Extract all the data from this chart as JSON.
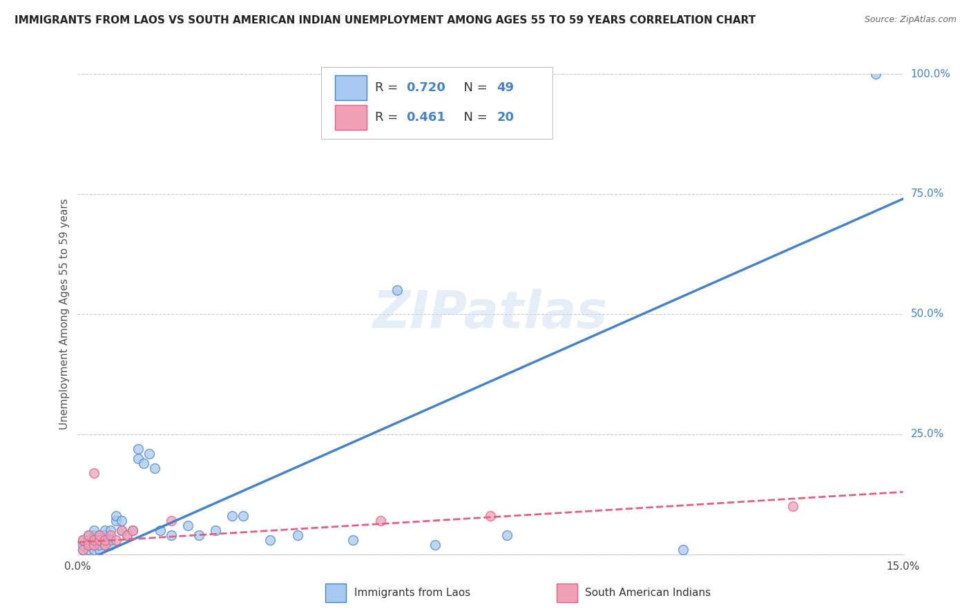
{
  "title": "IMMIGRANTS FROM LAOS VS SOUTH AMERICAN INDIAN UNEMPLOYMENT AMONG AGES 55 TO 59 YEARS CORRELATION CHART",
  "source": "Source: ZipAtlas.com",
  "ylabel": "Unemployment Among Ages 55 to 59 years",
  "xmin": 0.0,
  "xmax": 0.15,
  "ymin": 0.0,
  "ymax": 1.0,
  "yticks": [
    0.0,
    0.25,
    0.5,
    0.75,
    1.0
  ],
  "ytick_labels": [
    "",
    "25.0%",
    "50.0%",
    "75.0%",
    "100.0%"
  ],
  "xticks": [
    0.0,
    0.15
  ],
  "xtick_labels": [
    "0.0%",
    "15.0%"
  ],
  "legend_r1": "0.720",
  "legend_n1": "49",
  "legend_r2": "0.461",
  "legend_n2": "20",
  "color_laos": "#A8C8F0",
  "color_laos_line": "#4682C8",
  "color_sa": "#F0A0B8",
  "color_sa_line": "#E06080",
  "watermark_text": "ZIPatlas",
  "background_color": "#FFFFFF",
  "grid_color": "#C8C8C8",
  "laos_x": [
    0.001,
    0.001,
    0.001,
    0.002,
    0.002,
    0.002,
    0.002,
    0.003,
    0.003,
    0.003,
    0.003,
    0.003,
    0.004,
    0.004,
    0.004,
    0.004,
    0.005,
    0.005,
    0.005,
    0.005,
    0.006,
    0.006,
    0.006,
    0.007,
    0.007,
    0.008,
    0.008,
    0.009,
    0.01,
    0.011,
    0.011,
    0.012,
    0.013,
    0.014,
    0.015,
    0.017,
    0.02,
    0.022,
    0.025,
    0.028,
    0.03,
    0.035,
    0.04,
    0.05,
    0.058,
    0.065,
    0.078,
    0.11,
    0.145
  ],
  "laos_y": [
    0.01,
    0.02,
    0.03,
    0.01,
    0.02,
    0.03,
    0.04,
    0.01,
    0.02,
    0.03,
    0.04,
    0.05,
    0.01,
    0.02,
    0.03,
    0.04,
    0.02,
    0.03,
    0.04,
    0.05,
    0.02,
    0.03,
    0.05,
    0.07,
    0.08,
    0.05,
    0.07,
    0.04,
    0.05,
    0.2,
    0.22,
    0.19,
    0.21,
    0.18,
    0.05,
    0.04,
    0.06,
    0.04,
    0.05,
    0.08,
    0.08,
    0.03,
    0.04,
    0.03,
    0.55,
    0.02,
    0.04,
    0.01,
    1.0
  ],
  "sa_x": [
    0.001,
    0.001,
    0.002,
    0.002,
    0.003,
    0.003,
    0.003,
    0.004,
    0.004,
    0.005,
    0.005,
    0.006,
    0.007,
    0.008,
    0.009,
    0.01,
    0.017,
    0.055,
    0.075,
    0.13
  ],
  "sa_y": [
    0.01,
    0.03,
    0.02,
    0.04,
    0.02,
    0.03,
    0.17,
    0.03,
    0.04,
    0.02,
    0.03,
    0.04,
    0.03,
    0.05,
    0.04,
    0.05,
    0.07,
    0.07,
    0.08,
    0.1
  ],
  "laos_line_x0": 0.0,
  "laos_line_y0": -0.02,
  "laos_line_x1": 0.15,
  "laos_line_y1": 0.74,
  "sa_line_x0": 0.0,
  "sa_line_y0": 0.025,
  "sa_line_x1": 0.15,
  "sa_line_y1": 0.13
}
